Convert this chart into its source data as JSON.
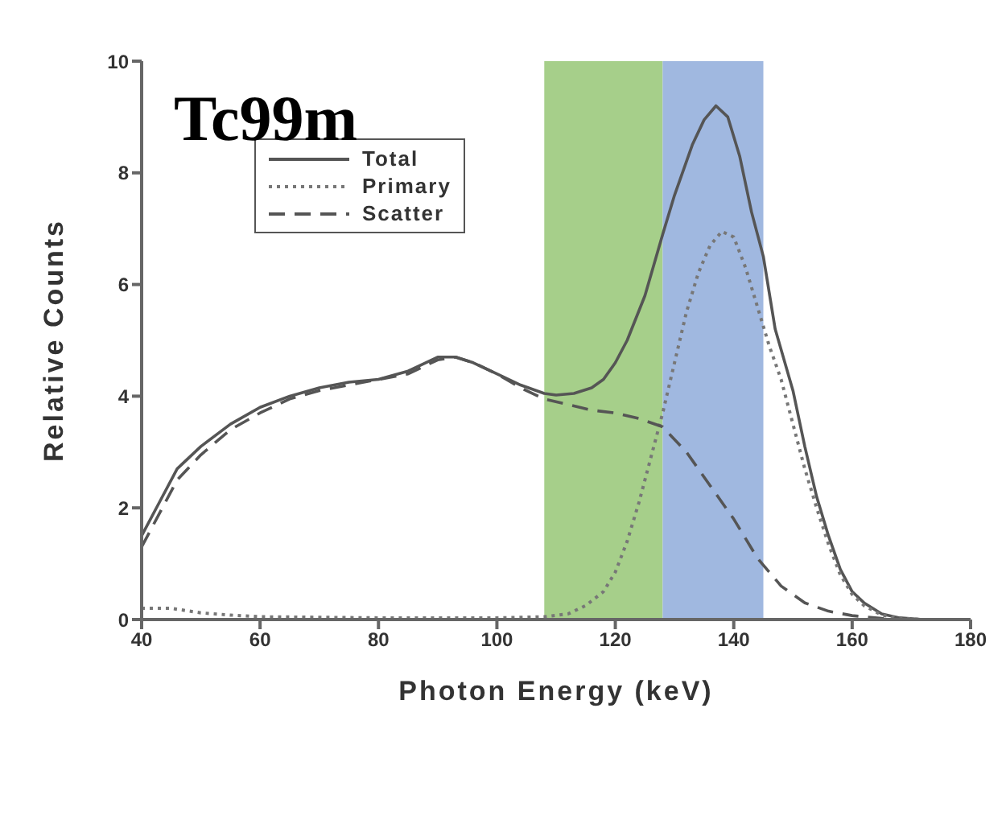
{
  "chart_data": {
    "type": "line",
    "title": "Tc99m",
    "xlabel": "Photon Energy (keV)",
    "ylabel": "Relative Counts",
    "xlim": [
      40,
      180
    ],
    "xticks": [
      40,
      60,
      80,
      100,
      120,
      140,
      160,
      180
    ],
    "ylim": [
      0,
      10
    ],
    "yticks": [
      0,
      2,
      4,
      6,
      8,
      10
    ],
    "grid": false,
    "legend": "top left",
    "marker": "none",
    "bands": [
      {
        "axis": "x",
        "from": 108,
        "to": 128,
        "color": "#a6cf8a"
      },
      {
        "axis": "x",
        "from": 128,
        "to": 145,
        "color": "#a0b8e0"
      }
    ],
    "series": [
      {
        "name": "Total",
        "color": "#555555",
        "line_style": "solid",
        "x": [
          40,
          43,
          46,
          50,
          55,
          60,
          65,
          70,
          75,
          80,
          85,
          90,
          93,
          96,
          100,
          104,
          108,
          110,
          113,
          116,
          118,
          120,
          122,
          125,
          128,
          130,
          133,
          135,
          137,
          139,
          141,
          143,
          145,
          147,
          150,
          152,
          154,
          156,
          158,
          160,
          162,
          165,
          168,
          172,
          180
        ],
        "values": [
          1.5,
          2.1,
          2.7,
          3.1,
          3.5,
          3.8,
          4.0,
          4.15,
          4.25,
          4.3,
          4.45,
          4.7,
          4.7,
          4.6,
          4.4,
          4.2,
          4.05,
          4.02,
          4.05,
          4.15,
          4.3,
          4.6,
          5.0,
          5.8,
          6.9,
          7.6,
          8.5,
          8.95,
          9.2,
          9.0,
          8.3,
          7.3,
          6.5,
          5.2,
          4.1,
          3.1,
          2.2,
          1.5,
          0.9,
          0.5,
          0.3,
          0.1,
          0.03,
          0,
          0
        ]
      },
      {
        "name": "Primary",
        "color": "#777777",
        "line_style": "dotted",
        "x": [
          40,
          45,
          50,
          55,
          60,
          80,
          100,
          108,
          112,
          115,
          118,
          120,
          122,
          124,
          126,
          128,
          130,
          132,
          134,
          136,
          138,
          140,
          142,
          144,
          146,
          148,
          150,
          152,
          154,
          156,
          158,
          160,
          162,
          165,
          168,
          172,
          180
        ],
        "values": [
          0.2,
          0.2,
          0.12,
          0.08,
          0.05,
          0.03,
          0.03,
          0.05,
          0.1,
          0.25,
          0.5,
          0.85,
          1.4,
          2.1,
          2.9,
          3.7,
          4.6,
          5.5,
          6.2,
          6.7,
          6.95,
          6.85,
          6.3,
          5.6,
          4.9,
          4.3,
          3.5,
          2.7,
          2.0,
          1.35,
          0.8,
          0.45,
          0.25,
          0.08,
          0.02,
          0,
          0
        ]
      },
      {
        "name": "Scatter",
        "color": "#555555",
        "line_style": "dashed",
        "x": [
          40,
          43,
          46,
          50,
          55,
          60,
          65,
          70,
          75,
          80,
          85,
          90,
          93,
          96,
          100,
          104,
          108,
          112,
          116,
          120,
          124,
          128,
          132,
          136,
          140,
          144,
          148,
          152,
          156,
          160,
          165,
          170,
          180
        ],
        "values": [
          1.3,
          1.9,
          2.5,
          2.95,
          3.4,
          3.7,
          3.95,
          4.1,
          4.2,
          4.3,
          4.4,
          4.65,
          4.7,
          4.6,
          4.4,
          4.15,
          3.95,
          3.85,
          3.75,
          3.7,
          3.6,
          3.45,
          3.0,
          2.4,
          1.8,
          1.1,
          0.6,
          0.3,
          0.15,
          0.07,
          0.02,
          0,
          0
        ]
      }
    ]
  }
}
